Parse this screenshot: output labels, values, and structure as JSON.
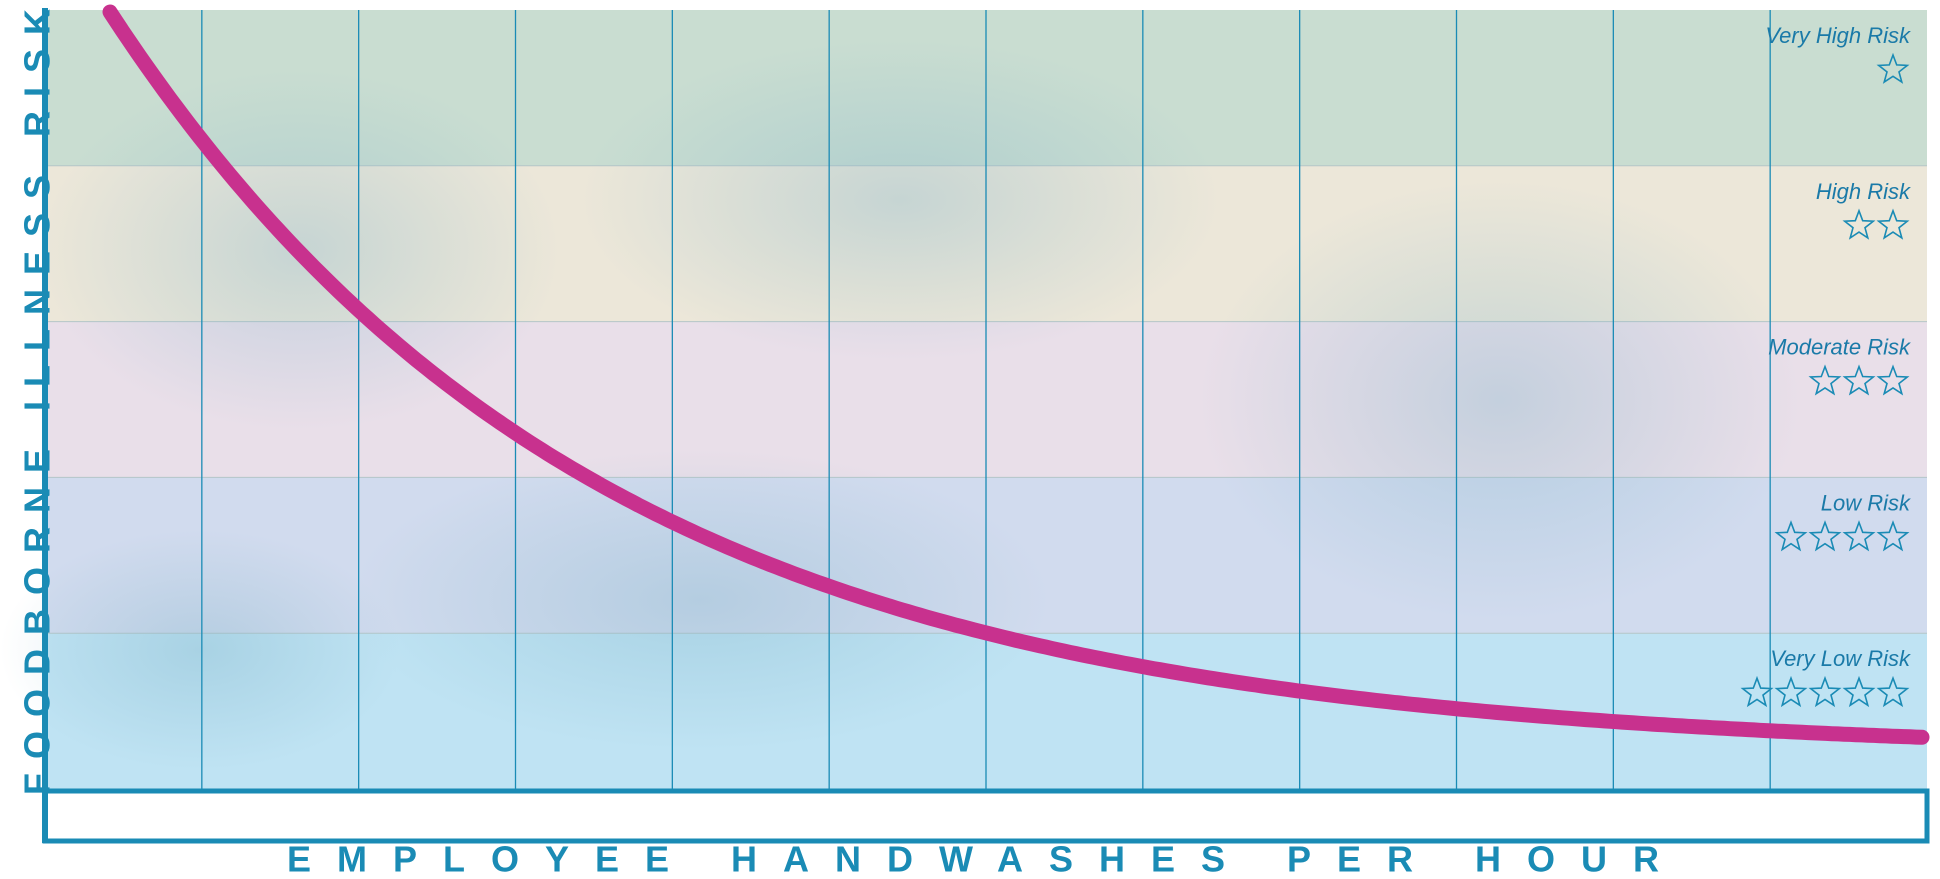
{
  "y_axis_label": "FOODBORNE ILLNESS RISK",
  "x_axis_label": "EMPLOYEE HANDWASHES PER HOUR",
  "bands": [
    {
      "label": "Very High Risk",
      "stars": 1
    },
    {
      "label": "High Risk",
      "stars": 2
    },
    {
      "label": "Moderate Risk",
      "stars": 3
    },
    {
      "label": "Low Risk",
      "stars": 4
    },
    {
      "label": "Very Low Risk",
      "stars": 5
    }
  ]
}
